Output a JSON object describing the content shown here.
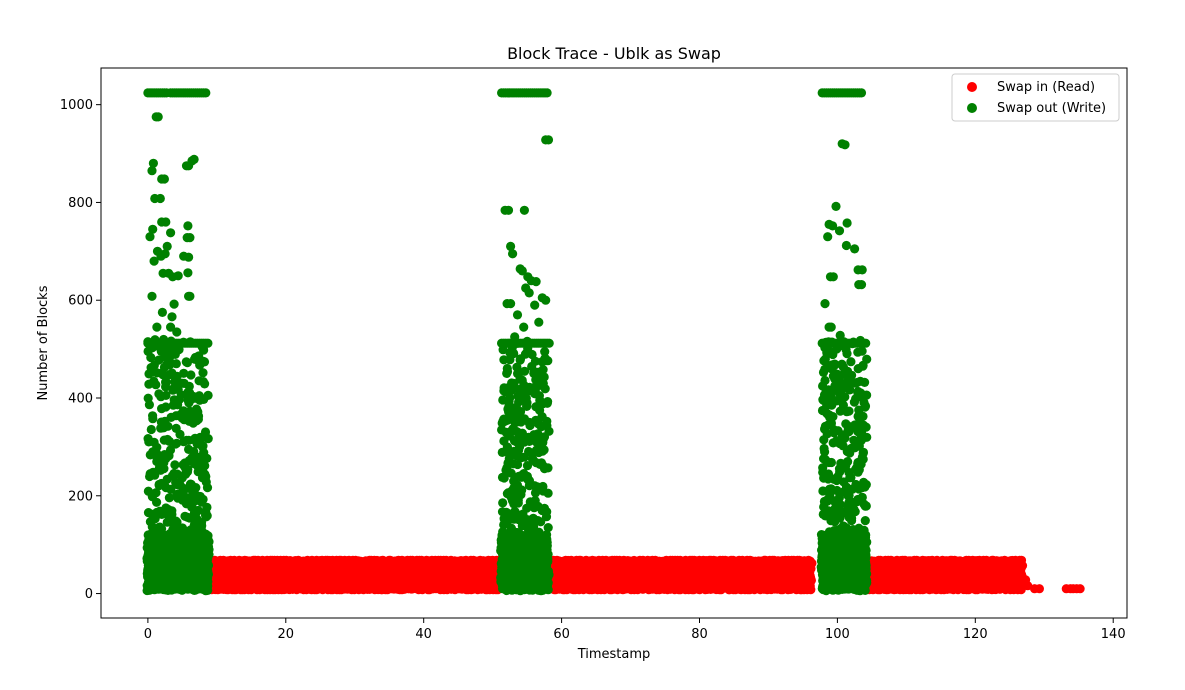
{
  "chart_data": {
    "type": "scatter",
    "title": "Block Trace - Ublk as Swap",
    "xlabel": "Timestamp",
    "ylabel": "Number of Blocks",
    "xlim": [
      -6.8,
      142
    ],
    "ylim": [
      -50,
      1075
    ],
    "xticks": [
      0,
      20,
      40,
      60,
      80,
      100,
      120,
      140
    ],
    "yticks": [
      0,
      200,
      400,
      600,
      800,
      1000
    ],
    "grid": false,
    "legend_position": "top-right",
    "series": [
      {
        "name": "Swap in (Read)",
        "color": "#ff0000",
        "bands": [
          {
            "x": [
              8.5,
              51
            ],
            "y": [
              8,
              68
            ]
          },
          {
            "x": [
              58.5,
              96.5
            ],
            "y": [
              8,
              68
            ]
          },
          {
            "x": [
              103.5,
              127
            ],
            "y": [
              8,
              68
            ]
          }
        ],
        "points": [
          {
            "x": 127.3,
            "y": 28
          },
          {
            "x": 127.6,
            "y": 16
          },
          {
            "x": 128.6,
            "y": 10
          },
          {
            "x": 129.3,
            "y": 10
          },
          {
            "x": 133.2,
            "y": 10
          },
          {
            "x": 133.8,
            "y": 10
          },
          {
            "x": 134.2,
            "y": 10
          },
          {
            "x": 134.7,
            "y": 10
          },
          {
            "x": 135.2,
            "y": 10
          },
          {
            "x": 126.5,
            "y": 65
          },
          {
            "x": 96.3,
            "y": 62
          },
          {
            "x": 58.6,
            "y": 66
          }
        ]
      },
      {
        "name": "Swap out (Write)",
        "color": "#008000",
        "clusters": [
          {
            "x": [
              0,
              8.8
            ],
            "dense_y": [
              8,
              520
            ],
            "cap_y": 512,
            "top_y": 1024,
            "top_x": [
              0,
              8.6
            ]
          },
          {
            "x": [
              51.3,
              58.2
            ],
            "dense_y": [
              8,
              520
            ],
            "cap_y": 512,
            "top_y": 1024,
            "top_x": [
              51.3,
              58.0
            ]
          },
          {
            "x": [
              97.8,
              104.3
            ],
            "dense_y": [
              8,
              520
            ],
            "cap_y": 512,
            "top_y": 1024,
            "top_x": [
              97.8,
              104.0
            ]
          }
        ],
        "points": [
          {
            "x": 1.2,
            "y": 975
          },
          {
            "x": 1.5,
            "y": 975
          },
          {
            "x": 0.8,
            "y": 880
          },
          {
            "x": 0.6,
            "y": 865
          },
          {
            "x": 2.0,
            "y": 848
          },
          {
            "x": 2.4,
            "y": 848
          },
          {
            "x": 1.0,
            "y": 808
          },
          {
            "x": 1.8,
            "y": 808
          },
          {
            "x": 2.0,
            "y": 760
          },
          {
            "x": 2.6,
            "y": 760
          },
          {
            "x": 0.3,
            "y": 730
          },
          {
            "x": 0.7,
            "y": 745
          },
          {
            "x": 1.4,
            "y": 700
          },
          {
            "x": 1.9,
            "y": 690
          },
          {
            "x": 2.8,
            "y": 710
          },
          {
            "x": 3.3,
            "y": 738
          },
          {
            "x": 0.9,
            "y": 680
          },
          {
            "x": 2.2,
            "y": 655
          },
          {
            "x": 3.0,
            "y": 655
          },
          {
            "x": 3.6,
            "y": 648
          },
          {
            "x": 0.6,
            "y": 608
          },
          {
            "x": 2.1,
            "y": 575
          },
          {
            "x": 3.8,
            "y": 592
          },
          {
            "x": 3.5,
            "y": 566
          },
          {
            "x": 1.3,
            "y": 545
          },
          {
            "x": 3.3,
            "y": 545
          },
          {
            "x": 4.2,
            "y": 535
          },
          {
            "x": 6.4,
            "y": 885
          },
          {
            "x": 6.7,
            "y": 888
          },
          {
            "x": 5.6,
            "y": 875
          },
          {
            "x": 5.9,
            "y": 875
          },
          {
            "x": 5.8,
            "y": 752
          },
          {
            "x": 5.7,
            "y": 728
          },
          {
            "x": 6.1,
            "y": 728
          },
          {
            "x": 5.9,
            "y": 688
          },
          {
            "x": 5.2,
            "y": 690
          },
          {
            "x": 5.8,
            "y": 656
          },
          {
            "x": 5.9,
            "y": 608
          },
          {
            "x": 6.1,
            "y": 608
          },
          {
            "x": 4.4,
            "y": 650
          },
          {
            "x": 2.5,
            "y": 695
          },
          {
            "x": 57.7,
            "y": 928
          },
          {
            "x": 58.1,
            "y": 928
          },
          {
            "x": 51.8,
            "y": 784
          },
          {
            "x": 52.3,
            "y": 784
          },
          {
            "x": 54.6,
            "y": 784
          },
          {
            "x": 52.6,
            "y": 710
          },
          {
            "x": 52.9,
            "y": 695
          },
          {
            "x": 54.0,
            "y": 664
          },
          {
            "x": 54.3,
            "y": 660
          },
          {
            "x": 55.1,
            "y": 648
          },
          {
            "x": 55.6,
            "y": 640
          },
          {
            "x": 55.3,
            "y": 615
          },
          {
            "x": 54.8,
            "y": 625
          },
          {
            "x": 56.3,
            "y": 638
          },
          {
            "x": 57.2,
            "y": 605
          },
          {
            "x": 57.7,
            "y": 600
          },
          {
            "x": 52.1,
            "y": 593
          },
          {
            "x": 52.6,
            "y": 593
          },
          {
            "x": 53.6,
            "y": 570
          },
          {
            "x": 56.1,
            "y": 590
          },
          {
            "x": 56.7,
            "y": 555
          },
          {
            "x": 54.5,
            "y": 545
          },
          {
            "x": 53.2,
            "y": 525
          },
          {
            "x": 101.1,
            "y": 918
          },
          {
            "x": 100.7,
            "y": 920
          },
          {
            "x": 99.8,
            "y": 792
          },
          {
            "x": 101.4,
            "y": 758
          },
          {
            "x": 98.8,
            "y": 755
          },
          {
            "x": 99.3,
            "y": 752
          },
          {
            "x": 100.3,
            "y": 742
          },
          {
            "x": 98.6,
            "y": 730
          },
          {
            "x": 101.3,
            "y": 712
          },
          {
            "x": 102.5,
            "y": 705
          },
          {
            "x": 103.0,
            "y": 662
          },
          {
            "x": 103.6,
            "y": 662
          },
          {
            "x": 99.0,
            "y": 648
          },
          {
            "x": 99.4,
            "y": 648
          },
          {
            "x": 103.1,
            "y": 632
          },
          {
            "x": 103.5,
            "y": 632
          },
          {
            "x": 98.2,
            "y": 593
          },
          {
            "x": 99.1,
            "y": 545
          },
          {
            "x": 98.8,
            "y": 545
          },
          {
            "x": 100.4,
            "y": 528
          }
        ]
      }
    ]
  }
}
